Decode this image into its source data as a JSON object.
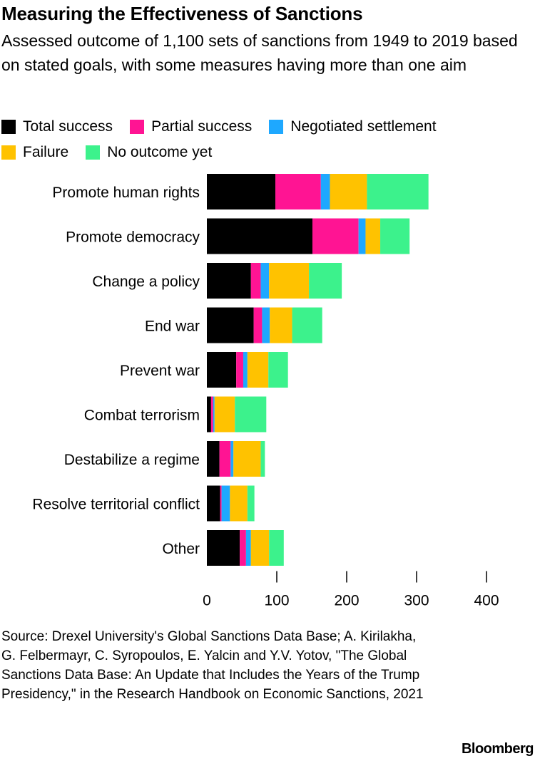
{
  "title": "Measuring the Effectiveness of Sanctions",
  "subtitle": "Assessed outcome of 1,100 sets of sanctions from 1949 to 2019 based on stated goals, with some measures having more than one aim",
  "chart_data": {
    "type": "bar",
    "orientation": "horizontal",
    "stacked": true,
    "categories": [
      "Promote human rights",
      "Promote democracy",
      "Change a policy",
      "End war",
      "Prevent war",
      "Combat terrorism",
      "Destabilize a regime",
      "Resolve territorial conflict",
      "Other"
    ],
    "series": [
      {
        "name": "Total success",
        "color": "#000000",
        "values": [
          98,
          151,
          63,
          67,
          42,
          6,
          18,
          19,
          47
        ]
      },
      {
        "name": "Partial success",
        "color": "#ff1493",
        "values": [
          65,
          66,
          14,
          12,
          10,
          3,
          16,
          2,
          9
        ]
      },
      {
        "name": "Negotiated settlement",
        "color": "#1ea8ff",
        "values": [
          13,
          10,
          12,
          11,
          6,
          2,
          4,
          12,
          7
        ]
      },
      {
        "name": "Failure",
        "color": "#ffc200",
        "values": [
          53,
          21,
          57,
          32,
          30,
          29,
          39,
          25,
          26
        ]
      },
      {
        "name": "No outcome yet",
        "color": "#3cf28c",
        "values": [
          88,
          42,
          47,
          43,
          28,
          45,
          6,
          10,
          21
        ]
      }
    ],
    "xlim": [
      0,
      400
    ],
    "xticks": [
      "0",
      "100",
      "200",
      "300",
      "400"
    ],
    "legend_position": "top"
  },
  "source": "Source: Drexel University's Global Sanctions Data Base; A. Kirilakha, G. Felbermayr, C. Syropoulos, E. Yalcin and Y.V. Yotov, \"The Global Sanctions Data Base: An Update that Includes the Years of the Trump Presidency,\" in the Research Handbook on Economic Sanctions, 2021",
  "logo": "Bloomberg"
}
